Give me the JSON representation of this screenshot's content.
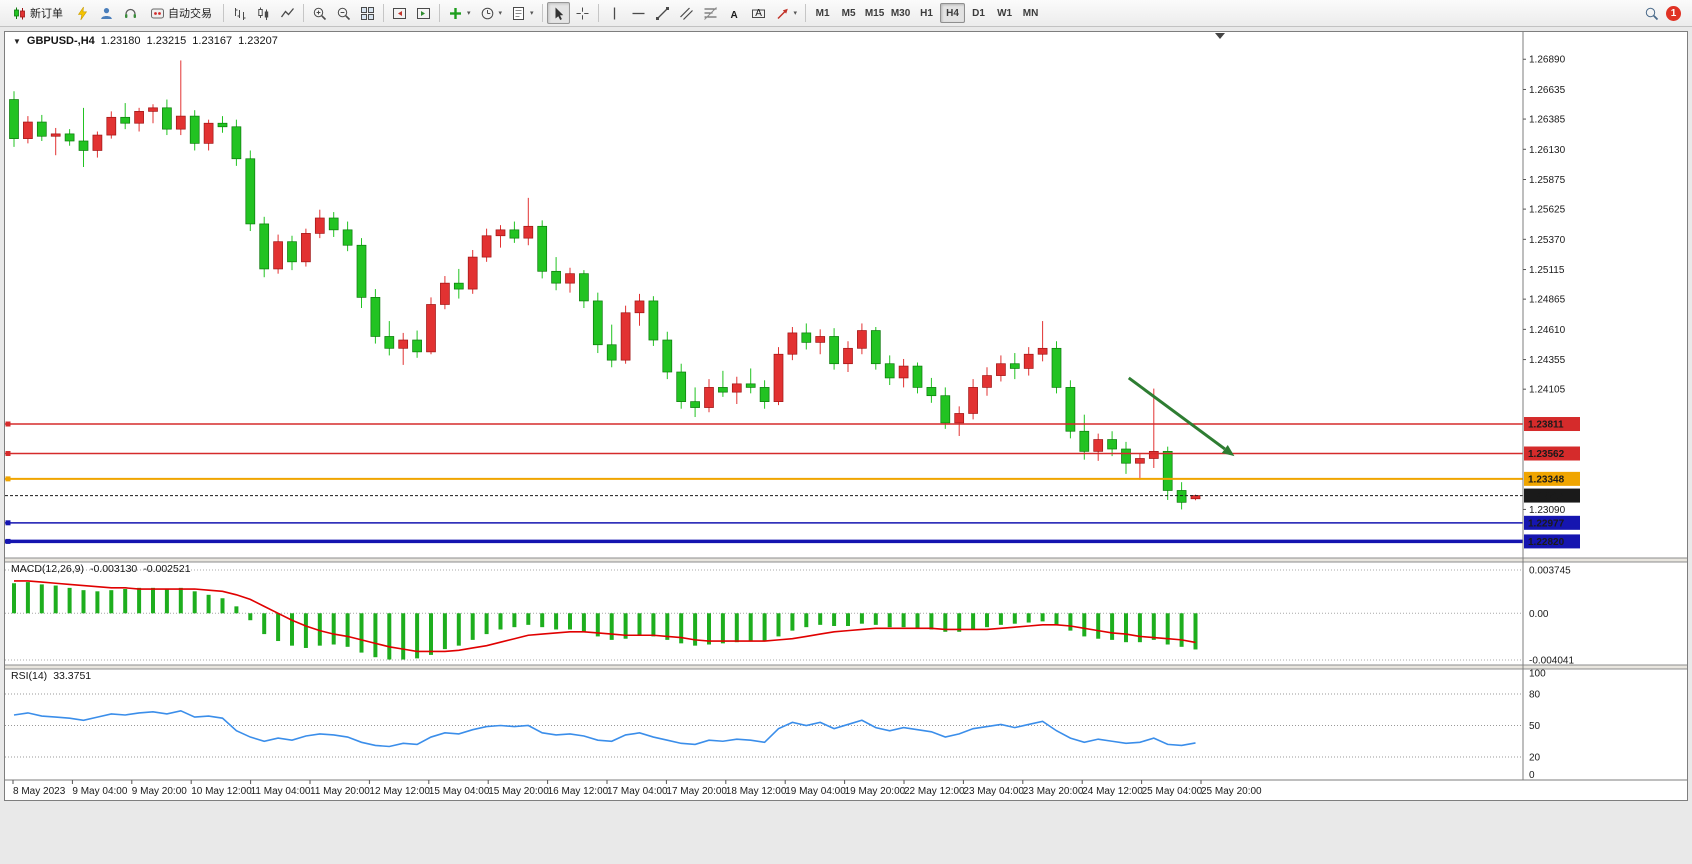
{
  "toolbar": {
    "new_order_label": "新订单",
    "autotrading_label": "自动交易",
    "timeframes": [
      "M1",
      "M5",
      "M15",
      "M30",
      "H1",
      "H4",
      "D1",
      "W1",
      "MN"
    ],
    "active_timeframe": "H4",
    "notification_count": "1",
    "caret_glyph": "▾"
  },
  "chart_header": {
    "expander_glyph": "▼",
    "symbol_period": "GBPUSD-,H4",
    "open": "1.23180",
    "high": "1.23215",
    "low": "1.23167",
    "close": "1.23207"
  },
  "macd_panel": {
    "name": "MACD(12,26,9)",
    "value_main": "-0.003130",
    "value_signal": "-0.002521"
  },
  "rsi_panel": {
    "name": "RSI(14)",
    "value": "33.3751"
  },
  "chart_data": {
    "type": "candlestick",
    "symbol": "GBPUSD-",
    "timeframe": "H4",
    "colors": {
      "up": "#E23232",
      "up_border": "#9E1414",
      "down": "#22C322",
      "down_border": "#0B7A0B",
      "macd_hist": "#1EAE1E",
      "macd_signal": "#E00000",
      "rsi_line": "#3B8EEA",
      "axis_text": "#1A1A1A"
    },
    "y_scale": {
      "max": 1.2712,
      "min": 1.2268
    },
    "y_axis_labels": [
      "1.26890",
      "1.26635",
      "1.26385",
      "1.26130",
      "1.25875",
      "1.25625",
      "1.25370",
      "1.25115",
      "1.24865",
      "1.24610",
      "1.24355",
      "1.24105",
      "1.23090"
    ],
    "candles": [
      [
        1.2655,
        1.2662,
        1.2615,
        1.2622
      ],
      [
        1.2622,
        1.2641,
        1.2618,
        1.2636
      ],
      [
        1.2636,
        1.2642,
        1.262,
        1.2624
      ],
      [
        1.2624,
        1.2631,
        1.2608,
        1.2626
      ],
      [
        1.2626,
        1.263,
        1.2616,
        1.262
      ],
      [
        1.262,
        1.2648,
        1.2598,
        1.2612
      ],
      [
        1.2612,
        1.2628,
        1.2606,
        1.2625
      ],
      [
        1.2625,
        1.2645,
        1.2622,
        1.264
      ],
      [
        1.264,
        1.2652,
        1.263,
        1.2635
      ],
      [
        1.2635,
        1.2648,
        1.2628,
        1.2645
      ],
      [
        1.2645,
        1.2651,
        1.2635,
        1.2648
      ],
      [
        1.2648,
        1.2655,
        1.2625,
        1.263
      ],
      [
        1.263,
        1.2688,
        1.2625,
        1.2641
      ],
      [
        1.2641,
        1.2646,
        1.2612,
        1.2618
      ],
      [
        1.2618,
        1.2638,
        1.2612,
        1.2635
      ],
      [
        1.2635,
        1.2641,
        1.2627,
        1.2632
      ],
      [
        1.2632,
        1.2638,
        1.2599,
        1.2605
      ],
      [
        1.2605,
        1.2612,
        1.2544,
        1.255
      ],
      [
        1.255,
        1.2556,
        1.2505,
        1.2512
      ],
      [
        1.2512,
        1.2541,
        1.2508,
        1.2535
      ],
      [
        1.2535,
        1.254,
        1.2511,
        1.2518
      ],
      [
        1.2518,
        1.2546,
        1.2514,
        1.2542
      ],
      [
        1.2542,
        1.2562,
        1.2538,
        1.2555
      ],
      [
        1.2555,
        1.256,
        1.2539,
        1.2545
      ],
      [
        1.2545,
        1.2552,
        1.2527,
        1.2532
      ],
      [
        1.2532,
        1.2538,
        1.2479,
        1.2488
      ],
      [
        1.2488,
        1.2495,
        1.2449,
        1.2455
      ],
      [
        1.2455,
        1.2468,
        1.2439,
        1.2445
      ],
      [
        1.2445,
        1.2458,
        1.2431,
        1.2452
      ],
      [
        1.2452,
        1.246,
        1.2437,
        1.2442
      ],
      [
        1.2442,
        1.2488,
        1.244,
        1.2482
      ],
      [
        1.2482,
        1.2506,
        1.2478,
        1.25
      ],
      [
        1.25,
        1.2512,
        1.2487,
        1.2495
      ],
      [
        1.2495,
        1.2528,
        1.2491,
        1.2522
      ],
      [
        1.2522,
        1.2546,
        1.2518,
        1.254
      ],
      [
        1.254,
        1.2549,
        1.253,
        1.2545
      ],
      [
        1.2545,
        1.2552,
        1.2534,
        1.2538
      ],
      [
        1.2538,
        1.2572,
        1.2532,
        1.2548
      ],
      [
        1.2548,
        1.2553,
        1.2504,
        1.251
      ],
      [
        1.251,
        1.2522,
        1.2494,
        1.25
      ],
      [
        1.25,
        1.2513,
        1.2492,
        1.2508
      ],
      [
        1.2508,
        1.2511,
        1.2479,
        1.2485
      ],
      [
        1.2485,
        1.2492,
        1.2441,
        1.2448
      ],
      [
        1.2448,
        1.2465,
        1.2429,
        1.2435
      ],
      [
        1.2435,
        1.2481,
        1.2432,
        1.2475
      ],
      [
        1.2475,
        1.2491,
        1.2464,
        1.2485
      ],
      [
        1.2485,
        1.2489,
        1.2447,
        1.2452
      ],
      [
        1.2452,
        1.2459,
        1.2419,
        1.2425
      ],
      [
        1.2425,
        1.2432,
        1.2394,
        1.24
      ],
      [
        1.24,
        1.2412,
        1.2387,
        1.2395
      ],
      [
        1.2395,
        1.2419,
        1.2391,
        1.2412
      ],
      [
        1.2412,
        1.2426,
        1.2404,
        1.2408
      ],
      [
        1.2408,
        1.2421,
        1.2398,
        1.2415
      ],
      [
        1.2415,
        1.2428,
        1.2407,
        1.2412
      ],
      [
        1.2412,
        1.2418,
        1.2394,
        1.24
      ],
      [
        1.24,
        1.2446,
        1.2397,
        1.244
      ],
      [
        1.244,
        1.2463,
        1.2435,
        1.2458
      ],
      [
        1.2458,
        1.2466,
        1.2444,
        1.245
      ],
      [
        1.245,
        1.2461,
        1.244,
        1.2455
      ],
      [
        1.2455,
        1.2462,
        1.2427,
        1.2432
      ],
      [
        1.2432,
        1.2451,
        1.2425,
        1.2445
      ],
      [
        1.2445,
        1.2466,
        1.244,
        1.246
      ],
      [
        1.246,
        1.2463,
        1.2427,
        1.2432
      ],
      [
        1.2432,
        1.2439,
        1.2414,
        1.242
      ],
      [
        1.242,
        1.2436,
        1.2412,
        1.243
      ],
      [
        1.243,
        1.2433,
        1.2407,
        1.2412
      ],
      [
        1.2412,
        1.242,
        1.2399,
        1.2405
      ],
      [
        1.2405,
        1.2412,
        1.2377,
        1.2382
      ],
      [
        1.2382,
        1.2396,
        1.2371,
        1.239
      ],
      [
        1.239,
        1.2419,
        1.2385,
        1.2412
      ],
      [
        1.2412,
        1.2429,
        1.2405,
        1.2422
      ],
      [
        1.2422,
        1.2439,
        1.2417,
        1.2432
      ],
      [
        1.2432,
        1.2441,
        1.2419,
        1.2428
      ],
      [
        1.2428,
        1.2446,
        1.2422,
        1.244
      ],
      [
        1.244,
        1.2468,
        1.2434,
        1.2445
      ],
      [
        1.2445,
        1.2451,
        1.2407,
        1.2412
      ],
      [
        1.2412,
        1.2418,
        1.2369,
        1.2375
      ],
      [
        1.2375,
        1.2389,
        1.2351,
        1.2358
      ],
      [
        1.2358,
        1.2373,
        1.235,
        1.2368
      ],
      [
        1.2368,
        1.2375,
        1.2354,
        1.236
      ],
      [
        1.236,
        1.2366,
        1.2339,
        1.2348
      ],
      [
        1.2348,
        1.2356,
        1.2334,
        1.2352
      ],
      [
        1.2352,
        1.2411,
        1.2344,
        1.2358
      ],
      [
        1.2358,
        1.2362,
        1.2317,
        1.2325
      ],
      [
        1.2325,
        1.2332,
        1.2309,
        1.2315
      ],
      [
        1.2318,
        1.23215,
        1.23167,
        1.23207
      ]
    ],
    "price_lines": [
      {
        "price": 1.23811,
        "label": "1.23811",
        "color": "#D52B2B",
        "width": 1.5
      },
      {
        "price": 1.23562,
        "label": "1.23562",
        "color": "#D52B2B",
        "width": 1.5
      },
      {
        "price": 1.23348,
        "label": "1.23348",
        "color": "#F0A500",
        "width": 2
      },
      {
        "price": 1.22977,
        "label": "1.22977",
        "color": "#1515B0",
        "width": 1.5
      },
      {
        "price": 1.2282,
        "label": "1.22820",
        "color": "#1515B0",
        "width": 3.5
      }
    ],
    "bid_line": {
      "price": 1.23207,
      "label": "1.23207",
      "color": "#1A1A1A"
    },
    "x_axis_labels": [
      "8 May 2023",
      "9 May 04:00",
      "9 May 20:00",
      "10 May 12:00",
      "11 May 04:00",
      "11 May 20:00",
      "12 May 12:00",
      "15 May 04:00",
      "15 May 20:00",
      "16 May 12:00",
      "17 May 04:00",
      "17 May 20:00",
      "18 May 12:00",
      "19 May 04:00",
      "19 May 20:00",
      "22 May 12:00",
      "23 May 04:00",
      "23 May 20:00",
      "24 May 12:00",
      "25 May 04:00",
      "25 May 20:00"
    ],
    "macd": {
      "scale": {
        "max": 0.003745,
        "min": -0.004041
      },
      "axis_labels": [
        "0.003745",
        "0.00",
        "-0.004041"
      ],
      "values": [
        0.0026,
        0.0027,
        0.0025,
        0.0024,
        0.0022,
        0.002,
        0.0019,
        0.002,
        0.0021,
        0.0022,
        0.0022,
        0.0021,
        0.0022,
        0.0019,
        0.0016,
        0.0013,
        0.0006,
        -0.0006,
        -0.0018,
        -0.0024,
        -0.0028,
        -0.003,
        -0.0028,
        -0.0027,
        -0.0029,
        -0.0034,
        -0.0038,
        -0.004,
        -0.004,
        -0.0039,
        -0.0036,
        -0.0031,
        -0.0028,
        -0.0023,
        -0.0018,
        -0.0014,
        -0.0012,
        -0.001,
        -0.0012,
        -0.0014,
        -0.0014,
        -0.0016,
        -0.002,
        -0.0023,
        -0.0022,
        -0.0019,
        -0.002,
        -0.0023,
        -0.0026,
        -0.0028,
        -0.0027,
        -0.0026,
        -0.0025,
        -0.0024,
        -0.0024,
        -0.002,
        -0.0015,
        -0.0012,
        -0.001,
        -0.0011,
        -0.0011,
        -0.0009,
        -0.001,
        -0.0012,
        -0.0012,
        -0.0013,
        -0.0014,
        -0.0016,
        -0.0016,
        -0.0014,
        -0.0012,
        -0.001,
        -0.0009,
        -0.0008,
        -0.0007,
        -0.001,
        -0.0015,
        -0.002,
        -0.0022,
        -0.0023,
        -0.0025,
        -0.0025,
        -0.0023,
        -0.0027,
        -0.0029,
        -0.00313
      ],
      "signal": [
        0.0028,
        0.0028,
        0.0027,
        0.0026,
        0.0025,
        0.0024,
        0.0023,
        0.0022,
        0.0022,
        0.0021,
        0.0021,
        0.0021,
        0.0021,
        0.0021,
        0.002,
        0.0019,
        0.0016,
        0.0012,
        0.0006,
        0.0,
        -0.0006,
        -0.0011,
        -0.0015,
        -0.0018,
        -0.002,
        -0.0023,
        -0.0026,
        -0.0029,
        -0.0031,
        -0.0033,
        -0.0033,
        -0.0033,
        -0.0032,
        -0.003,
        -0.0028,
        -0.0025,
        -0.0022,
        -0.0019,
        -0.0018,
        -0.0017,
        -0.0016,
        -0.0016,
        -0.0017,
        -0.0018,
        -0.0019,
        -0.0019,
        -0.0019,
        -0.002,
        -0.0021,
        -0.0023,
        -0.0024,
        -0.0024,
        -0.0024,
        -0.0024,
        -0.0024,
        -0.0023,
        -0.0022,
        -0.002,
        -0.0018,
        -0.0016,
        -0.0015,
        -0.0014,
        -0.0013,
        -0.0013,
        -0.0013,
        -0.0013,
        -0.0013,
        -0.0014,
        -0.0014,
        -0.0014,
        -0.0014,
        -0.0013,
        -0.0012,
        -0.0011,
        -0.001,
        -0.001,
        -0.0011,
        -0.0013,
        -0.0015,
        -0.0017,
        -0.0018,
        -0.002,
        -0.0021,
        -0.0022,
        -0.0023,
        -0.002521
      ]
    },
    "rsi": {
      "levels": [
        80,
        50,
        20
      ],
      "axis_labels": [
        "100",
        "80",
        "50",
        "20",
        "0"
      ],
      "values": [
        60,
        62,
        59,
        58,
        57,
        55,
        58,
        61,
        60,
        62,
        63,
        61,
        64,
        58,
        59,
        57,
        45,
        39,
        35,
        38,
        36,
        40,
        42,
        41,
        39,
        34,
        31,
        30,
        33,
        32,
        39,
        43,
        42,
        46,
        49,
        50,
        49,
        50,
        43,
        41,
        42,
        40,
        36,
        35,
        41,
        43,
        39,
        36,
        33,
        32,
        36,
        35,
        37,
        36,
        34,
        47,
        53,
        50,
        53,
        47,
        51,
        55,
        48,
        45,
        48,
        46,
        44,
        39,
        42,
        47,
        49,
        51,
        48,
        51,
        54,
        45,
        38,
        34,
        37,
        35,
        33,
        34,
        38,
        32,
        31,
        33.3751
      ]
    },
    "annotations": {
      "arrow": {
        "from": [
          80.2,
          1.242
        ],
        "to": [
          87.8,
          1.2354
        ],
        "color": "#2E7D32"
      }
    }
  }
}
